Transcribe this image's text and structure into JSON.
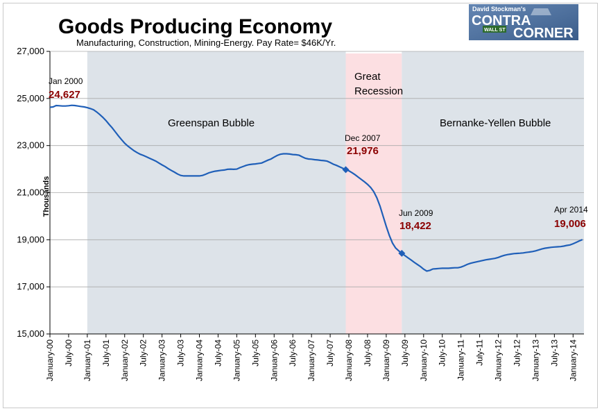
{
  "title": "Goods Producing Economy",
  "subtitle": "Manufacturing, Construction, Mining-Energy.  Pay Rate= $46K/Yr.",
  "logo": {
    "top": "David Stockman's",
    "left_word": "CONTRA",
    "right_word": "CORNER",
    "sign": "WALL ST",
    "colors": {
      "bg": "#4a6fa0",
      "text": "#ffffff"
    }
  },
  "regions": {
    "greenspan": "Greenspan Bubble",
    "recession_line1": "Great",
    "recession_line2": "Recession",
    "bernanke": "Bernanke-Yellen Bubble"
  },
  "annotations": [
    {
      "id": "jan2000",
      "date": "Jan 2000",
      "value": "24,627"
    },
    {
      "id": "dec2007",
      "date": "Dec 2007",
      "value": "21,976"
    },
    {
      "id": "jun2009",
      "date": "Jun 2009",
      "value": "18,422"
    },
    {
      "id": "apr2014",
      "date": "Apr 2014",
      "value": "19,006"
    }
  ],
  "colors": {
    "line": "#1f5fb8",
    "bubble_shade": "#dde3e9",
    "recession_shade": "#fcdfe2",
    "annotation_value": "#8b0000",
    "grid": "#aaaaaa"
  },
  "chart_data": {
    "type": "line",
    "title": "Goods Producing Economy",
    "subtitle": "Manufacturing, Construction, Mining-Energy.  Pay Rate= $46K/Yr.",
    "xlabel": "",
    "ylabel": "Thousands",
    "ylim": [
      15000,
      27000
    ],
    "y_ticks": [
      "15,000",
      "17,000",
      "19,000",
      "21,000",
      "23,000",
      "25,000",
      "27,000"
    ],
    "y_tick_values": [
      15000,
      17000,
      19000,
      21000,
      23000,
      25000,
      27000
    ],
    "x_ticks": [
      "January-00",
      "July-00",
      "January-01",
      "July-01",
      "January-02",
      "July-02",
      "January-03",
      "July-03",
      "January-04",
      "July-04",
      "January-05",
      "July-05",
      "January-06",
      "July-06",
      "January-07",
      "July-07",
      "January-08",
      "July-08",
      "January-09",
      "July-09",
      "January-10",
      "July-10",
      "January-11",
      "July-11",
      "January-12",
      "July-12",
      "January-13",
      "July-13",
      "January-14"
    ],
    "grid": "horizontal",
    "shaded_periods": [
      {
        "name": "Greenspan Bubble",
        "start": "2001-01",
        "end": "2007-12"
      },
      {
        "name": "Great Recession",
        "start": "2007-12",
        "end": "2009-06"
      },
      {
        "name": "Bernanke-Yellen Bubble",
        "start": "2009-06",
        "end": "2014-04"
      }
    ],
    "series": [
      {
        "points": [
          [
            "2000-01",
            24627
          ],
          [
            "2000-02",
            24640
          ],
          [
            "2000-03",
            24700
          ],
          [
            "2000-04",
            24690
          ],
          [
            "2000-05",
            24680
          ],
          [
            "2000-06",
            24680
          ],
          [
            "2000-07",
            24690
          ],
          [
            "2000-08",
            24710
          ],
          [
            "2000-09",
            24700
          ],
          [
            "2000-10",
            24680
          ],
          [
            "2000-11",
            24660
          ],
          [
            "2000-12",
            24640
          ],
          [
            "2001-01",
            24610
          ],
          [
            "2001-02",
            24570
          ],
          [
            "2001-03",
            24520
          ],
          [
            "2001-04",
            24430
          ],
          [
            "2001-05",
            24320
          ],
          [
            "2001-06",
            24200
          ],
          [
            "2001-07",
            24060
          ],
          [
            "2001-08",
            23900
          ],
          [
            "2001-09",
            23750
          ],
          [
            "2001-10",
            23580
          ],
          [
            "2001-11",
            23410
          ],
          [
            "2001-12",
            23250
          ],
          [
            "2002-01",
            23100
          ],
          [
            "2002-02",
            22980
          ],
          [
            "2002-03",
            22880
          ],
          [
            "2002-04",
            22780
          ],
          [
            "2002-05",
            22700
          ],
          [
            "2002-06",
            22630
          ],
          [
            "2002-07",
            22580
          ],
          [
            "2002-08",
            22520
          ],
          [
            "2002-09",
            22460
          ],
          [
            "2002-10",
            22400
          ],
          [
            "2002-11",
            22340
          ],
          [
            "2002-12",
            22260
          ],
          [
            "2003-01",
            22180
          ],
          [
            "2003-02",
            22110
          ],
          [
            "2003-03",
            22020
          ],
          [
            "2003-04",
            21940
          ],
          [
            "2003-05",
            21870
          ],
          [
            "2003-06",
            21790
          ],
          [
            "2003-07",
            21730
          ],
          [
            "2003-08",
            21710
          ],
          [
            "2003-09",
            21710
          ],
          [
            "2003-10",
            21710
          ],
          [
            "2003-11",
            21710
          ],
          [
            "2003-12",
            21710
          ],
          [
            "2004-01",
            21710
          ],
          [
            "2004-02",
            21730
          ],
          [
            "2004-03",
            21780
          ],
          [
            "2004-04",
            21840
          ],
          [
            "2004-05",
            21880
          ],
          [
            "2004-06",
            21910
          ],
          [
            "2004-07",
            21930
          ],
          [
            "2004-08",
            21950
          ],
          [
            "2004-09",
            21960
          ],
          [
            "2004-10",
            21990
          ],
          [
            "2004-11",
            22000
          ],
          [
            "2004-12",
            21990
          ],
          [
            "2005-01",
            22000
          ],
          [
            "2005-02",
            22060
          ],
          [
            "2005-03",
            22110
          ],
          [
            "2005-04",
            22160
          ],
          [
            "2005-05",
            22190
          ],
          [
            "2005-06",
            22210
          ],
          [
            "2005-07",
            22220
          ],
          [
            "2005-08",
            22240
          ],
          [
            "2005-09",
            22260
          ],
          [
            "2005-10",
            22320
          ],
          [
            "2005-11",
            22380
          ],
          [
            "2005-12",
            22430
          ],
          [
            "2006-01",
            22510
          ],
          [
            "2006-02",
            22580
          ],
          [
            "2006-03",
            22630
          ],
          [
            "2006-04",
            22650
          ],
          [
            "2006-05",
            22650
          ],
          [
            "2006-06",
            22640
          ],
          [
            "2006-07",
            22620
          ],
          [
            "2006-08",
            22610
          ],
          [
            "2006-09",
            22590
          ],
          [
            "2006-10",
            22520
          ],
          [
            "2006-11",
            22460
          ],
          [
            "2006-12",
            22430
          ],
          [
            "2007-01",
            22420
          ],
          [
            "2007-02",
            22400
          ],
          [
            "2007-03",
            22390
          ],
          [
            "2007-04",
            22370
          ],
          [
            "2007-05",
            22360
          ],
          [
            "2007-06",
            22340
          ],
          [
            "2007-07",
            22280
          ],
          [
            "2007-08",
            22210
          ],
          [
            "2007-09",
            22160
          ],
          [
            "2007-10",
            22100
          ],
          [
            "2007-11",
            22040
          ],
          [
            "2007-12",
            21976
          ],
          [
            "2008-01",
            21930
          ],
          [
            "2008-02",
            21850
          ],
          [
            "2008-03",
            21760
          ],
          [
            "2008-04",
            21660
          ],
          [
            "2008-05",
            21560
          ],
          [
            "2008-06",
            21460
          ],
          [
            "2008-07",
            21350
          ],
          [
            "2008-08",
            21220
          ],
          [
            "2008-09",
            21040
          ],
          [
            "2008-10",
            20780
          ],
          [
            "2008-11",
            20430
          ],
          [
            "2008-12",
            20000
          ],
          [
            "2009-01",
            19570
          ],
          [
            "2009-02",
            19180
          ],
          [
            "2009-03",
            18860
          ],
          [
            "2009-04",
            18650
          ],
          [
            "2009-05",
            18530
          ],
          [
            "2009-06",
            18422
          ],
          [
            "2009-07",
            18330
          ],
          [
            "2009-08",
            18230
          ],
          [
            "2009-09",
            18140
          ],
          [
            "2009-10",
            18040
          ],
          [
            "2009-11",
            17950
          ],
          [
            "2009-12",
            17860
          ],
          [
            "2010-01",
            17750
          ],
          [
            "2010-02",
            17670
          ],
          [
            "2010-03",
            17700
          ],
          [
            "2010-04",
            17760
          ],
          [
            "2010-05",
            17770
          ],
          [
            "2010-06",
            17780
          ],
          [
            "2010-07",
            17790
          ],
          [
            "2010-08",
            17790
          ],
          [
            "2010-09",
            17790
          ],
          [
            "2010-10",
            17800
          ],
          [
            "2010-11",
            17810
          ],
          [
            "2010-12",
            17810
          ],
          [
            "2011-01",
            17840
          ],
          [
            "2011-02",
            17890
          ],
          [
            "2011-03",
            17950
          ],
          [
            "2011-04",
            18000
          ],
          [
            "2011-05",
            18030
          ],
          [
            "2011-06",
            18060
          ],
          [
            "2011-07",
            18090
          ],
          [
            "2011-08",
            18120
          ],
          [
            "2011-09",
            18150
          ],
          [
            "2011-10",
            18170
          ],
          [
            "2011-11",
            18190
          ],
          [
            "2011-12",
            18210
          ],
          [
            "2012-01",
            18250
          ],
          [
            "2012-02",
            18300
          ],
          [
            "2012-03",
            18340
          ],
          [
            "2012-04",
            18370
          ],
          [
            "2012-05",
            18390
          ],
          [
            "2012-06",
            18410
          ],
          [
            "2012-07",
            18420
          ],
          [
            "2012-08",
            18430
          ],
          [
            "2012-09",
            18440
          ],
          [
            "2012-10",
            18460
          ],
          [
            "2012-11",
            18480
          ],
          [
            "2012-12",
            18500
          ],
          [
            "2013-01",
            18530
          ],
          [
            "2013-02",
            18570
          ],
          [
            "2013-03",
            18610
          ],
          [
            "2013-04",
            18640
          ],
          [
            "2013-05",
            18660
          ],
          [
            "2013-06",
            18680
          ],
          [
            "2013-07",
            18690
          ],
          [
            "2013-08",
            18700
          ],
          [
            "2013-09",
            18710
          ],
          [
            "2013-10",
            18730
          ],
          [
            "2013-11",
            18760
          ],
          [
            "2013-12",
            18780
          ],
          [
            "2014-01",
            18830
          ],
          [
            "2014-02",
            18890
          ],
          [
            "2014-03",
            18950
          ],
          [
            "2014-04",
            19006
          ]
        ]
      }
    ],
    "markers": [
      "2007-12",
      "2009-06"
    ]
  }
}
